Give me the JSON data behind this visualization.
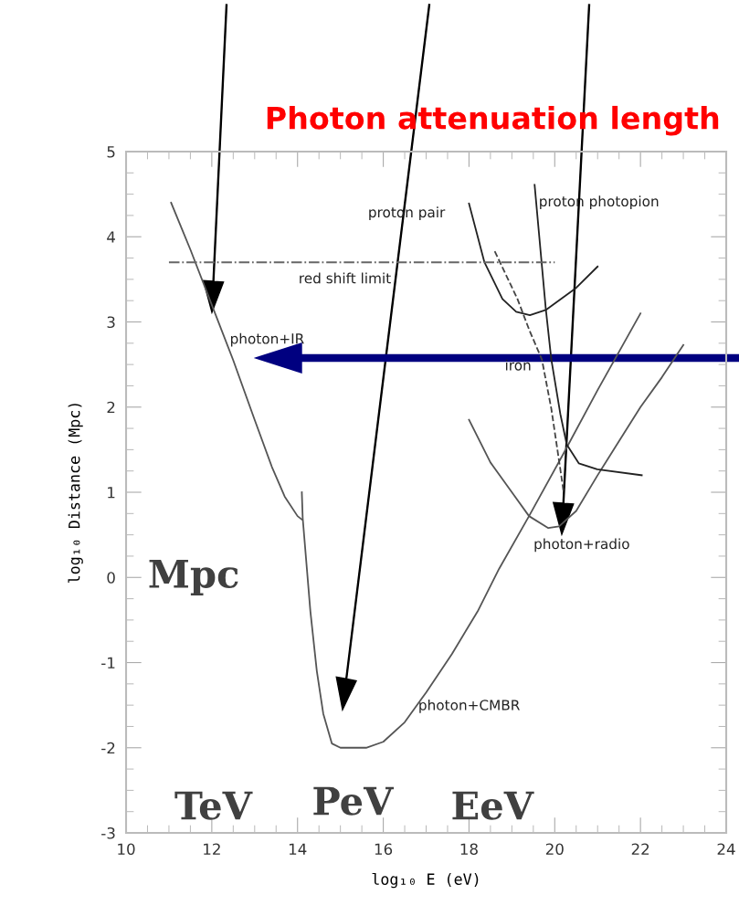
{
  "chart_data": {
    "type": "line",
    "title": "Photon attenuation length",
    "xlabel": "log₁₀ E (eV)",
    "ylabel": "log₁₀ Distance (Mpc)",
    "xlim": [
      10,
      24
    ],
    "xticks": [
      10,
      12,
      14,
      16,
      18,
      20,
      22,
      24
    ],
    "ylim": [
      -3,
      5
    ],
    "yticks": [
      -3,
      -2,
      -1,
      0,
      1,
      2,
      3,
      4,
      5
    ],
    "grid": false,
    "legend": false,
    "marker": "none",
    "series": [
      {
        "color": "#555555",
        "line_style": "solid",
        "x": [
          11.05,
          11.5,
          12.0,
          12.5,
          13.0,
          13.4,
          13.7,
          14.0,
          14.1
        ],
        "values": [
          4.4,
          3.85,
          3.2,
          2.55,
          1.85,
          1.3,
          0.95,
          0.72,
          0.68
        ]
      },
      {
        "color": "#555555",
        "line_style": "solid",
        "x": [
          14.1,
          14.12,
          14.3,
          14.45,
          14.6,
          14.8,
          15.0,
          15.6,
          16.0,
          16.5,
          17.0,
          17.6,
          18.2,
          18.7,
          19.4,
          20.2,
          21.0,
          22.0
        ],
        "values": [
          1.0,
          0.7,
          -0.4,
          -1.1,
          -1.6,
          -1.95,
          -2.0,
          -2.0,
          -1.93,
          -1.7,
          -1.35,
          -0.9,
          -0.4,
          0.1,
          0.72,
          1.45,
          2.2,
          3.1
        ]
      },
      {
        "color": "#555555",
        "line_style": "solid",
        "x": [
          18.0,
          18.5,
          19.0,
          19.4,
          19.85,
          20.1,
          20.5,
          21.0,
          21.5,
          22.0,
          22.5,
          23.0
        ],
        "values": [
          1.85,
          1.35,
          1.0,
          0.72,
          0.58,
          0.6,
          0.78,
          1.2,
          1.6,
          2.0,
          2.35,
          2.73
        ]
      },
      {
        "color": "#222222",
        "line_style": "solid",
        "x": [
          18.0,
          18.36,
          18.78,
          19.1,
          19.42,
          19.79,
          20.5,
          21.0
        ],
        "values": [
          4.39,
          3.7,
          3.27,
          3.12,
          3.08,
          3.14,
          3.4,
          3.65
        ]
      },
      {
        "color": "#222222",
        "line_style": "solid",
        "x": [
          19.53,
          19.79,
          19.92,
          20.13,
          20.28,
          20.56,
          20.99,
          22.03
        ],
        "values": [
          4.61,
          3.16,
          2.56,
          1.92,
          1.56,
          1.34,
          1.27,
          1.2
        ]
      },
      {
        "color": "#444444",
        "line_style": "dashed",
        "x": [
          18.6,
          19.13,
          19.41,
          19.7,
          19.92,
          20.13,
          20.21
        ],
        "values": [
          3.83,
          3.27,
          2.9,
          2.56,
          1.98,
          1.27,
          0.99
        ]
      },
      {
        "color": "#666666",
        "line_style": "dashdot",
        "x": [
          11.0,
          20.0
        ],
        "values": [
          3.7,
          3.7
        ]
      }
    ],
    "annotations": [
      "photon+IR",
      "photon+CMBR",
      "photon+radio",
      "proton pair",
      "proton photopion",
      "iron",
      "red shift limit",
      "Mpc",
      "TeV",
      "PeV",
      "EeV"
    ]
  }
}
